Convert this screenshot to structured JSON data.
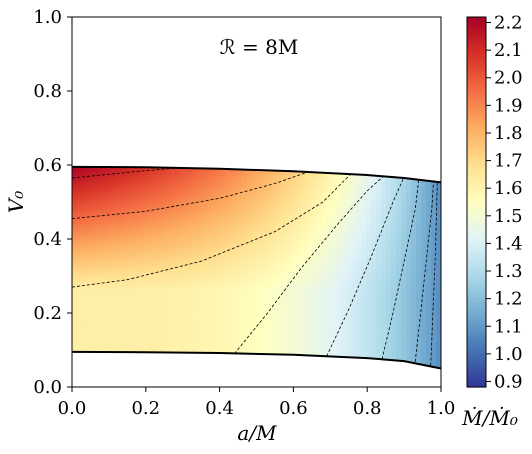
{
  "chart_data": {
    "type": "heatmap",
    "annotation": "ℛ = 8M",
    "xlabel": "a/M",
    "ylabel": "V₀",
    "colorbar_label": "Ṁ/Ṁ₀",
    "xlim": [
      0.0,
      1.0
    ],
    "ylim": [
      0.0,
      1.0
    ],
    "x_ticks": [
      "0.0",
      "0.2",
      "0.4",
      "0.6",
      "0.8",
      "1.0"
    ],
    "y_ticks": [
      "0.0",
      "0.2",
      "0.4",
      "0.6",
      "0.8",
      "1.0"
    ],
    "colorbar_range": [
      0.88,
      2.22
    ],
    "colorbar_ticks": [
      "0.9",
      "1.0",
      "1.1",
      "1.2",
      "1.3",
      "1.4",
      "1.5",
      "1.6",
      "1.7",
      "1.8",
      "1.9",
      "2.0",
      "2.1",
      "2.2"
    ],
    "colormap": "RdYlBu_r",
    "upper_boundary": {
      "a": [
        0.0,
        0.2,
        0.4,
        0.6,
        0.8,
        0.9,
        1.0
      ],
      "V0": [
        0.595,
        0.594,
        0.59,
        0.583,
        0.573,
        0.565,
        0.553
      ]
    },
    "lower_boundary": {
      "a": [
        0.0,
        0.2,
        0.4,
        0.6,
        0.8,
        0.9,
        1.0
      ],
      "V0": [
        0.095,
        0.094,
        0.092,
        0.087,
        0.078,
        0.07,
        0.05
      ]
    },
    "contours": [
      {
        "a": [
          0.0,
          0.1,
          0.2,
          0.28,
          0.32
        ],
        "V0": [
          0.565,
          0.575,
          0.585,
          0.591,
          0.593
        ]
      },
      {
        "a": [
          0.0,
          0.2,
          0.4,
          0.55,
          0.65
        ],
        "V0": [
          0.455,
          0.475,
          0.51,
          0.55,
          0.585
        ]
      },
      {
        "a": [
          0.0,
          0.15,
          0.35,
          0.55,
          0.68,
          0.76
        ],
        "V0": [
          0.27,
          0.29,
          0.34,
          0.42,
          0.5,
          0.58
        ]
      },
      {
        "a": [
          0.44,
          0.53,
          0.62,
          0.72,
          0.8,
          0.85
        ],
        "V0": [
          0.09,
          0.2,
          0.32,
          0.44,
          0.53,
          0.575
        ]
      },
      {
        "a": [
          0.69,
          0.75,
          0.81,
          0.87,
          0.9
        ],
        "V0": [
          0.083,
          0.21,
          0.35,
          0.5,
          0.568
        ]
      },
      {
        "a": [
          0.84,
          0.87,
          0.9,
          0.93,
          0.94
        ],
        "V0": [
          0.075,
          0.2,
          0.34,
          0.48,
          0.563
        ]
      },
      {
        "a": [
          0.93,
          0.945,
          0.96,
          0.975,
          0.98
        ],
        "V0": [
          0.068,
          0.2,
          0.34,
          0.48,
          0.558
        ]
      },
      {
        "a": [
          0.972,
          0.978,
          0.984,
          0.988,
          0.99
        ],
        "V0": [
          0.058,
          0.2,
          0.34,
          0.48,
          0.555
        ]
      }
    ]
  }
}
